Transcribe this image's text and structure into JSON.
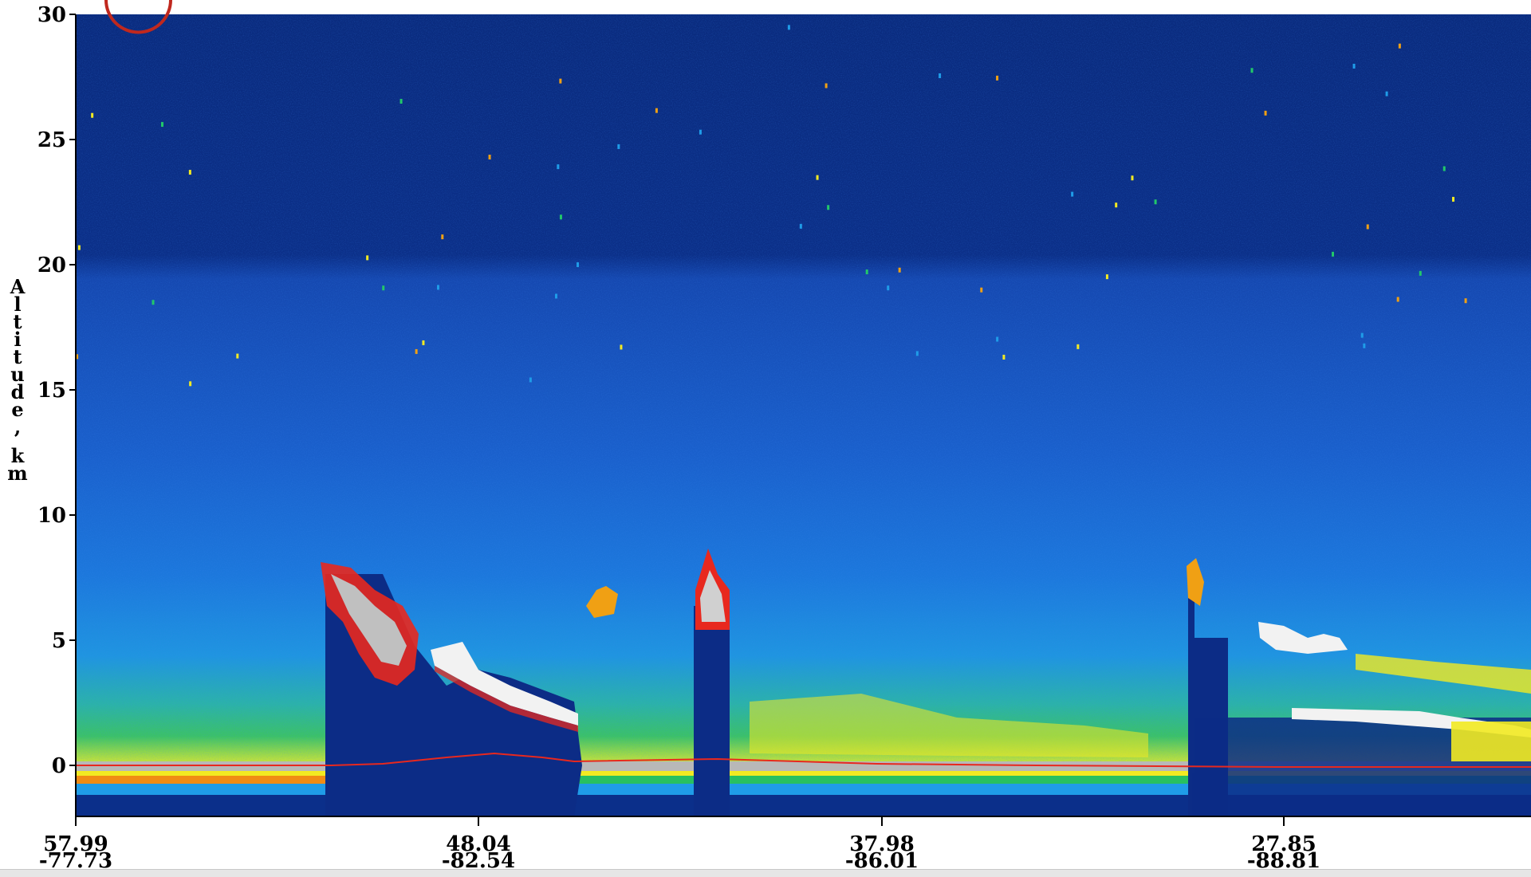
{
  "chart_data": {
    "type": "heatmap",
    "title": "",
    "ylabel": "Altitude, km",
    "xlabel": "",
    "ylim": [
      -2,
      30
    ],
    "y_ticks": [
      0,
      5,
      10,
      15,
      20,
      25,
      30
    ],
    "x_ticks": [
      {
        "lat": "57.99",
        "lon": "-77.73"
      },
      {
        "lat": "48.04",
        "lon": "-82.54"
      },
      {
        "lat": "37.98",
        "lon": "-86.01"
      },
      {
        "lat": "27.85",
        "lon": "-88.81"
      }
    ],
    "grid": false,
    "legend": "none",
    "palette": [
      "#0a2a7a",
      "#0d3aa0",
      "#1670e0",
      "#1f9ce8",
      "#22c86a",
      "#f2ee22",
      "#f0a014",
      "#e8281e",
      "#a8a8a8",
      "#f2f2f2"
    ],
    "features": [
      {
        "name": "",
        "x_range": [
          "57.99",
          "48.04"
        ],
        "y_range": [
          1,
          8
        ]
      },
      {
        "name": "",
        "x_range": [
          "48.04",
          "37.98"
        ],
        "y_range": [
          2,
          9
        ]
      },
      {
        "name": "",
        "x_range": [
          "27.85",
          "-"
        ],
        "y_range": [
          0,
          6
        ]
      }
    ]
  }
}
